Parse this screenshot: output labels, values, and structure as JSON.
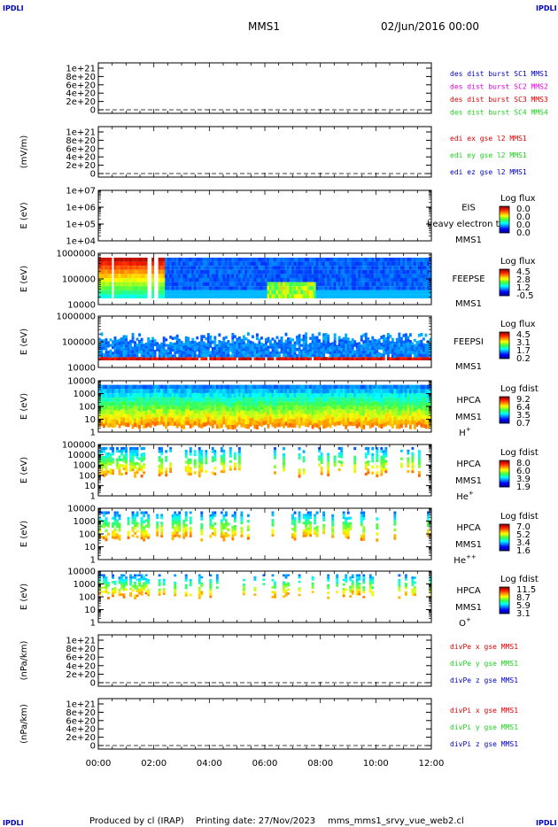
{
  "corner_marks": {
    "tl": "IPDLI",
    "tr": "IPDLI",
    "bl": "IPDLI",
    "br": "IPDLI"
  },
  "header": {
    "mission": "MMS1",
    "datetime": "02/Jun/2016 00:00"
  },
  "footer": {
    "produced_by": "Produced by cl (IRAP)",
    "printing_date": "Printing date: 27/Nov/2023",
    "script": "mms_mms1_srvy_vue_web2.cl"
  },
  "time_axis": [
    "00:00",
    "02:00",
    "04:00",
    "06:00",
    "08:00",
    "10:00",
    "12:00"
  ],
  "colors": {
    "red": "#e00000",
    "green": "#20d020",
    "blue": "#0000c0",
    "magenta": "#e000e0",
    "dark_red": "#b00000"
  },
  "chart_data": [
    {
      "type": "line",
      "id": "dist",
      "ylabel": "",
      "yticks": [
        "0",
        "2e+20",
        "4e+20",
        "6e+20",
        "8e+20",
        "1e+21"
      ],
      "series": [
        {
          "name": "des dist burst SC1 MMS1",
          "color": "#0000c0"
        },
        {
          "name": "des dist burst SC2 MMS2",
          "color": "#e000e0"
        },
        {
          "name": "des dist burst SC3 MMS3",
          "color": "#e00000"
        },
        {
          "name": "des dist burst SC4 MMS4",
          "color": "#20d020"
        }
      ]
    },
    {
      "type": "line",
      "id": "edi",
      "ylabel": "(mV/m)",
      "yticks": [
        "0",
        "2e+20",
        "4e+20",
        "6e+20",
        "8e+20",
        "1e+21"
      ],
      "series": [
        {
          "name": "edi ex gse l2 MMS1",
          "color": "#e00000"
        },
        {
          "name": "edi ey gse l2 MMS1",
          "color": "#20d020"
        },
        {
          "name": "edi ez gse l2 MMS1",
          "color": "#0000c0"
        }
      ]
    },
    {
      "type": "heatmap",
      "id": "eis",
      "ylabel": "E (eV)",
      "yticks": [
        "1e+04",
        "1e+05",
        "1e+06",
        "1e+07"
      ],
      "side_labels": [
        "EIS",
        "MMS1"
      ],
      "overlay": "heavy electron tc",
      "cbar_title": "Log flux",
      "cbar_ticks": [
        "0.0",
        "0.0",
        "0.0",
        "0.0"
      ]
    },
    {
      "type": "heatmap",
      "id": "feepse",
      "ylabel": "E (eV)",
      "yticks": [
        "10000",
        "100000",
        "1000000"
      ],
      "side_labels": [
        "FEEPSE",
        "MMS1"
      ],
      "cbar_title": "Log flux",
      "cbar_ticks": [
        "4.5",
        "2.8",
        "1.2",
        "-0.5"
      ]
    },
    {
      "type": "heatmap",
      "id": "feepsi",
      "ylabel": "E (eV)",
      "yticks": [
        "10000",
        "100000",
        "1000000"
      ],
      "side_labels": [
        "FEEPSI",
        "MMS1"
      ],
      "cbar_title": "Log flux",
      "cbar_ticks": [
        "4.5",
        "3.1",
        "1.7",
        "0.2"
      ]
    },
    {
      "type": "heatmap",
      "id": "hpca_h",
      "ylabel": "E (eV)",
      "yticks": [
        "1",
        "10",
        "100",
        "1000",
        "10000"
      ],
      "side_labels": [
        "HPCA",
        "MMS1",
        "H+"
      ],
      "cbar_title": "Log fdist",
      "cbar_ticks": [
        "9.2",
        "6.4",
        "3.5",
        "0.7"
      ]
    },
    {
      "type": "heatmap",
      "id": "hpca_he",
      "ylabel": "E (eV)",
      "yticks": [
        "1",
        "10",
        "100",
        "1000",
        "10000",
        "100000"
      ],
      "side_labels": [
        "HPCA",
        "MMS1",
        "He+"
      ],
      "cbar_title": "Log fdist",
      "cbar_ticks": [
        "8.0",
        "6.0",
        "3.9",
        "1.9"
      ]
    },
    {
      "type": "heatmap",
      "id": "hpca_hepp",
      "ylabel": "E (eV)",
      "yticks": [
        "1",
        "10",
        "100",
        "1000",
        "10000"
      ],
      "side_labels": [
        "HPCA",
        "MMS1",
        "He++"
      ],
      "cbar_title": "Log fdist",
      "cbar_ticks": [
        "7.0",
        "5.2",
        "3.4",
        "1.6"
      ]
    },
    {
      "type": "heatmap",
      "id": "hpca_o",
      "ylabel": "E (eV)",
      "yticks": [
        "1",
        "10",
        "100",
        "1000",
        "10000"
      ],
      "side_labels": [
        "HPCA",
        "MMS1",
        "O+"
      ],
      "cbar_title": "Log fdist",
      "cbar_ticks": [
        "11.5",
        "8.7",
        "5.9",
        "3.1"
      ]
    },
    {
      "type": "line",
      "id": "divpe",
      "ylabel": "(nPa/km)",
      "yticks": [
        "0",
        "2e+20",
        "4e+20",
        "6e+20",
        "8e+20",
        "1e+21"
      ],
      "series": [
        {
          "name": "divPe x gse MMS1",
          "color": "#e00000"
        },
        {
          "name": "divPe y gse MMS1",
          "color": "#20d020"
        },
        {
          "name": "divPe z gse MMS1",
          "color": "#0000c0"
        }
      ]
    },
    {
      "type": "line",
      "id": "divpi",
      "ylabel": "(nPa/km)",
      "yticks": [
        "0",
        "2e+20",
        "4e+20",
        "6e+20",
        "8e+20",
        "1e+21"
      ],
      "series": [
        {
          "name": "divPi x gse MMS1",
          "color": "#e00000"
        },
        {
          "name": "divPi y gse MMS1",
          "color": "#20d020"
        },
        {
          "name": "divPi z gse MMS1",
          "color": "#0000c0"
        }
      ]
    }
  ]
}
